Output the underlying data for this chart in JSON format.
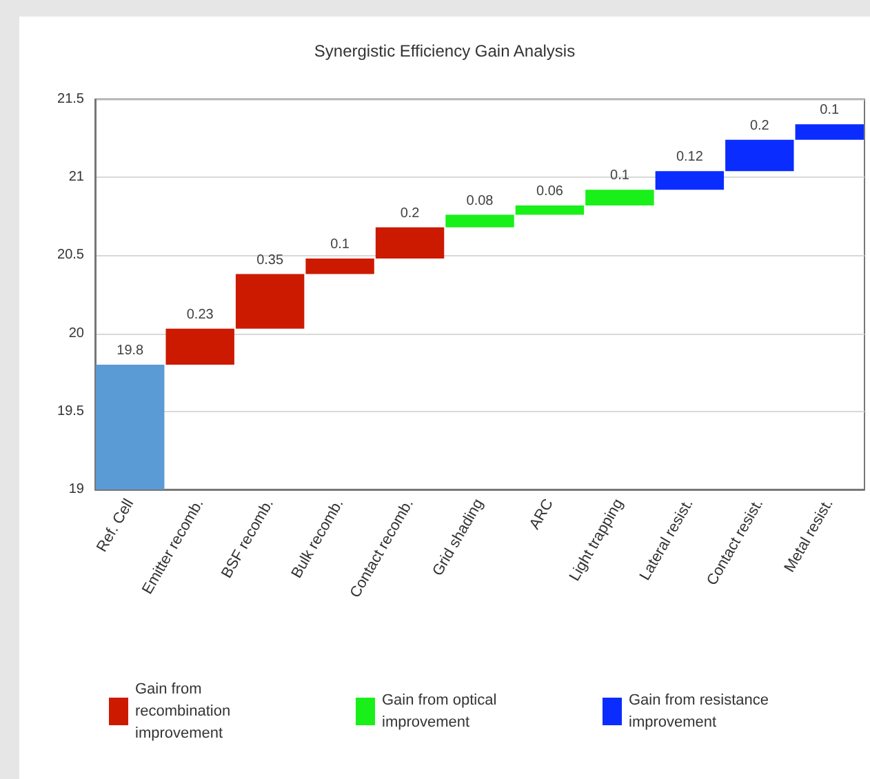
{
  "chart_data": {
    "type": "bar",
    "title": "Synergistic Efficiency Gain Analysis",
    "categories": [
      "Ref. Cell",
      "Emitter recomb.",
      "BSF recomb.",
      "Bulk recomb.",
      "Contact recomb.",
      "Grid shading",
      "ARC",
      "Light trapping",
      "Lateral resist.",
      "Contact resist.",
      "Metal resist."
    ],
    "series": [
      {
        "color": "#5b9bd5",
        "values": [
          19.8,
          null,
          null,
          null,
          null,
          null,
          null,
          null,
          null,
          null,
          null
        ]
      },
      {
        "name": "Gain from recombination improvement",
        "color": "#cc1a00",
        "values": [
          null,
          0.23,
          0.35,
          0.1,
          0.2,
          null,
          null,
          null,
          null,
          null,
          null
        ],
        "base": [
          null,
          19.8,
          20.03,
          20.38,
          20.48,
          null,
          null,
          null,
          null,
          null,
          null
        ]
      },
      {
        "name": "Gain from optical improvement",
        "color": "#19f019",
        "values": [
          null,
          null,
          null,
          null,
          null,
          0.08,
          0.06,
          0.1,
          null,
          null,
          null
        ],
        "base": [
          null,
          null,
          null,
          null,
          null,
          20.68,
          20.76,
          20.82,
          null,
          null,
          null
        ]
      },
      {
        "name": "Gain from resistance improvement",
        "color": "#0a2cff",
        "values": [
          null,
          null,
          null,
          null,
          null,
          null,
          null,
          null,
          0.12,
          0.2,
          0.1
        ],
        "base": [
          null,
          null,
          null,
          null,
          null,
          null,
          null,
          null,
          20.92,
          21.04,
          21.24
        ]
      }
    ],
    "ylim": [
      19,
      21.5
    ],
    "yticks": [
      19,
      19.5,
      20,
      20.5,
      21,
      21.5
    ],
    "grid": "y",
    "legend": "bottom",
    "data_labels": true
  }
}
